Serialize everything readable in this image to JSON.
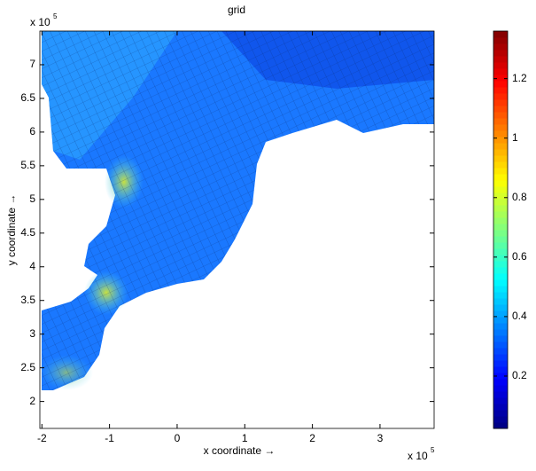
{
  "chart_data": {
    "type": "grid-map",
    "title": "grid",
    "x_label": "x coordinate →",
    "y_label": "y coordinate →",
    "x_multiplier": {
      "base": "x 10",
      "exponent": "5"
    },
    "y_multiplier": {
      "base": "x 10",
      "exponent": "5"
    },
    "xlim": [
      -2.03,
      3.8
    ],
    "xticks": [
      -2,
      -1,
      0,
      1,
      2,
      3
    ],
    "ylim": [
      1.6,
      7.5
    ],
    "yticks": [
      2,
      2.5,
      3,
      3.5,
      4,
      4.5,
      5,
      5.5,
      6,
      6.5,
      7
    ],
    "colormap": "jet",
    "clim": [
      0.024,
      1.36
    ],
    "cticks": [
      0.2,
      0.4,
      0.6,
      0.8,
      1,
      1.2
    ]
  }
}
